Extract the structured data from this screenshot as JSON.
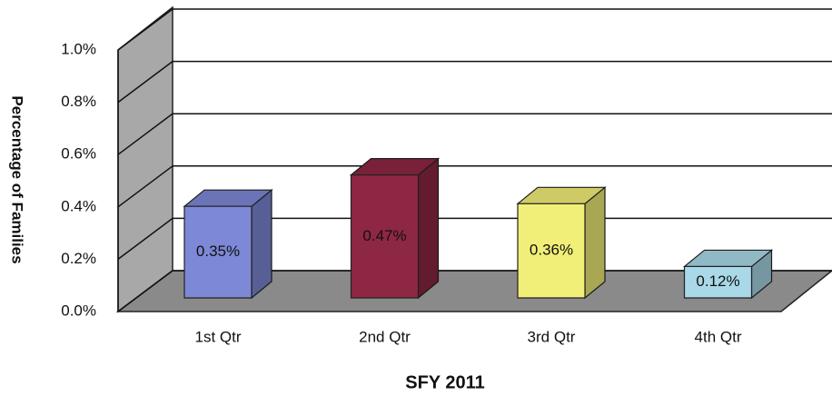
{
  "chart_data": {
    "type": "bar3d",
    "y_label": "Percentage of Families",
    "x_label": "SFY 2011",
    "categories": [
      "1st Qtr",
      "2nd Qtr",
      "3rd Qtr",
      "4th Qtr"
    ],
    "values": [
      0.35,
      0.47,
      0.36,
      0.12
    ],
    "value_labels": [
      "0.35%",
      "0.47%",
      "0.36%",
      "0.12%"
    ],
    "colors": [
      "#7d88d6",
      "#8e2743",
      "#f2ef78",
      "#a9d8e8"
    ],
    "ylim": [
      0,
      1.0
    ],
    "yticks": [
      {
        "value": 0.0,
        "label": "0.0%"
      },
      {
        "value": 0.2,
        "label": "0.2%"
      },
      {
        "value": 0.4,
        "label": "0.4%"
      },
      {
        "value": 0.6,
        "label": "0.6%"
      },
      {
        "value": 0.8,
        "label": "0.8%"
      },
      {
        "value": 1.0,
        "label": "1.0%"
      }
    ],
    "grid": true
  }
}
